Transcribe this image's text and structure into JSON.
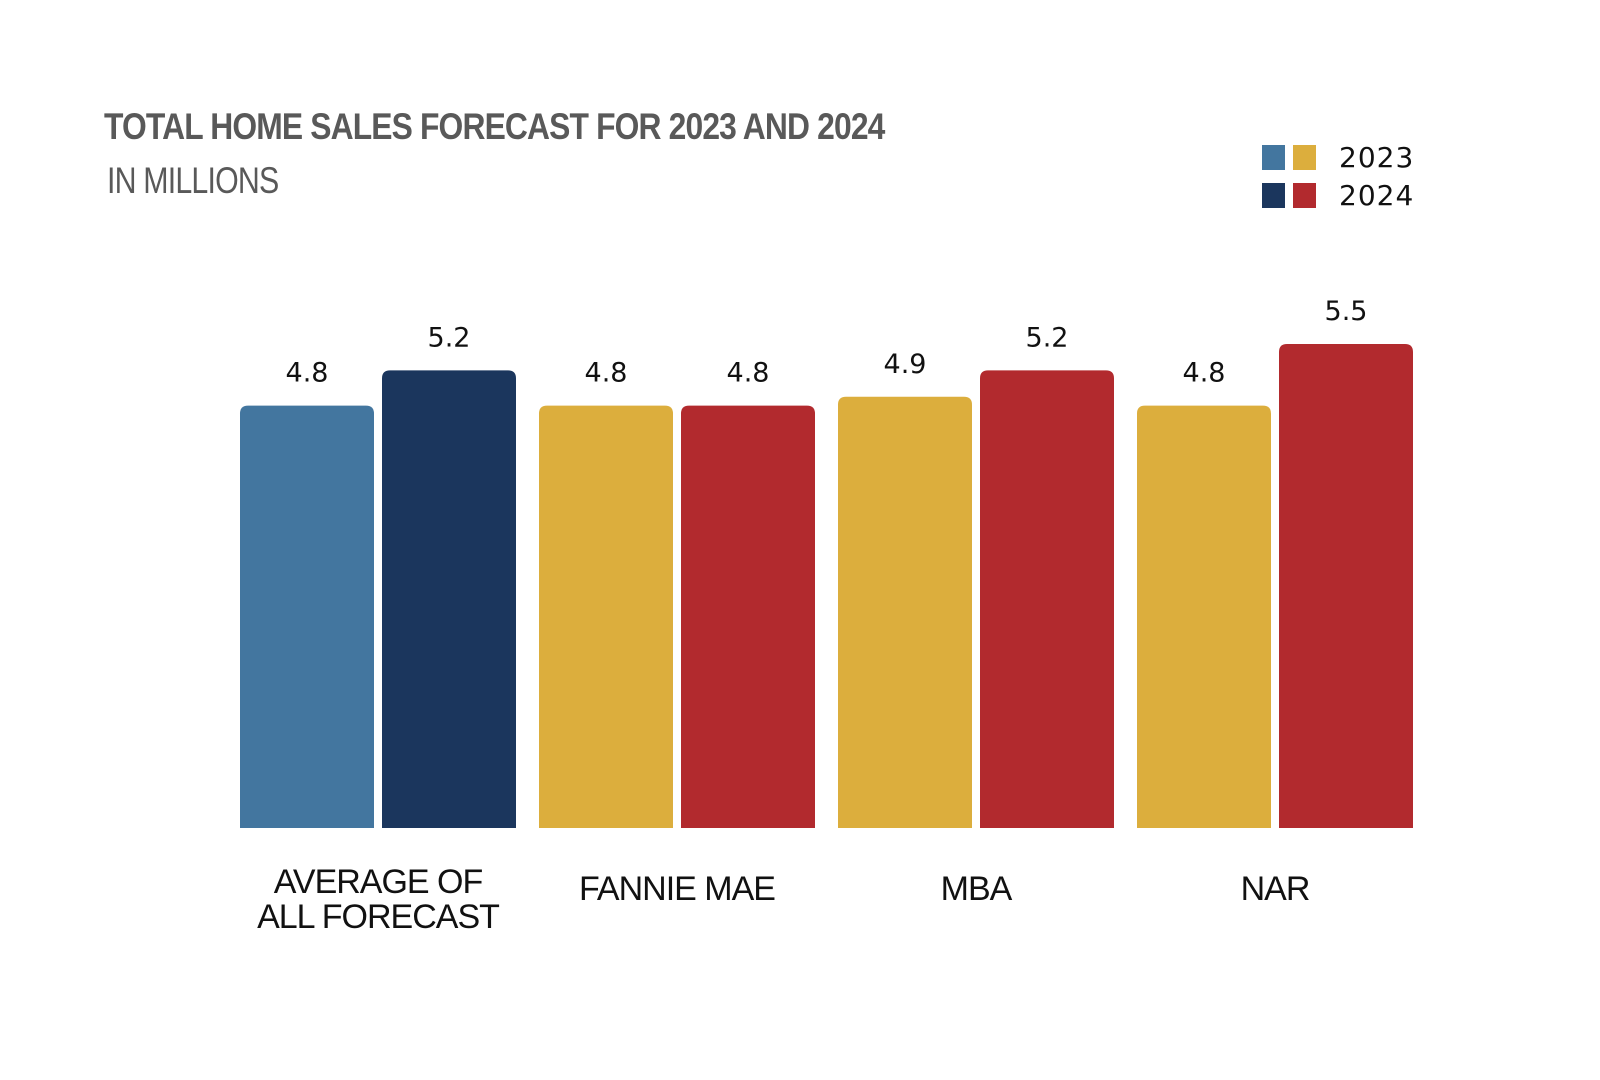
{
  "chart_data": {
    "type": "bar",
    "title": "TOTAL HOME SALES FORECAST FOR 2023 AND 2024",
    "subtitle": "IN MILLIONS",
    "categories": [
      "AVERAGE OF ALL FORECAST",
      "FANNIE MAE",
      "MBA",
      "NAR"
    ],
    "category_lines": [
      [
        "AVERAGE OF",
        "ALL FORECAST"
      ],
      [
        "FANNIE MAE"
      ],
      [
        "MBA"
      ],
      [
        "NAR"
      ]
    ],
    "series": [
      {
        "name": "2023",
        "values": [
          4.8,
          4.8,
          4.9,
          4.8
        ],
        "labels": [
          "4.8",
          "4.8",
          "4.9",
          "4.8"
        ]
      },
      {
        "name": "2024",
        "values": [
          5.2,
          4.8,
          5.2,
          5.5
        ],
        "labels": [
          "5.2",
          "4.8",
          "5.2",
          "5.5"
        ]
      }
    ],
    "colors": {
      "2023": [
        "#43769f",
        "#dcae3d",
        "#dcae3d",
        "#dcae3d"
      ],
      "2024": [
        "#1b365d",
        "#b22a2e",
        "#b22a2e",
        "#b22a2e"
      ]
    },
    "legend": {
      "placement": "top-right",
      "items": [
        {
          "label": "2023",
          "colors": [
            "#43769f",
            "#dcae3d"
          ]
        },
        {
          "label": "2024",
          "colors": [
            "#1b365d",
            "#b22a2e"
          ]
        }
      ]
    },
    "ylim": [
      0,
      5.5
    ],
    "grid": false,
    "value_labels": true
  }
}
